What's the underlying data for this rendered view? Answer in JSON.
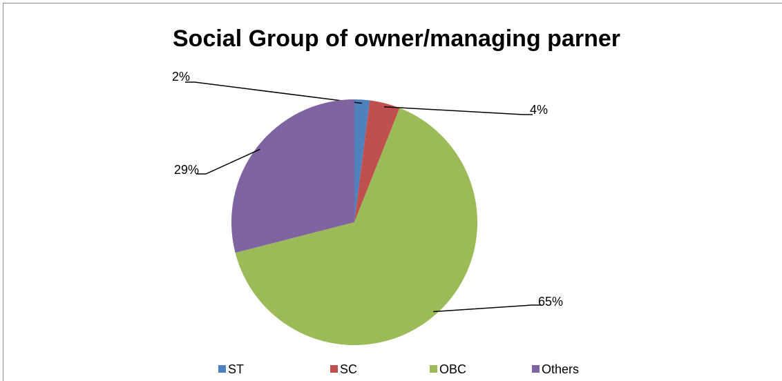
{
  "chart_data": {
    "type": "pie",
    "title": "Social Group of owner/managing parner",
    "categories": [
      "ST",
      "SC",
      "OBC",
      "Others"
    ],
    "values": [
      2,
      4,
      65,
      29
    ],
    "value_labels": [
      "2%",
      "4%",
      "65%",
      "29%"
    ],
    "colors": [
      "#4f81bd",
      "#c0504d",
      "#9bbb59",
      "#8064a2"
    ],
    "legend": "bottom"
  }
}
